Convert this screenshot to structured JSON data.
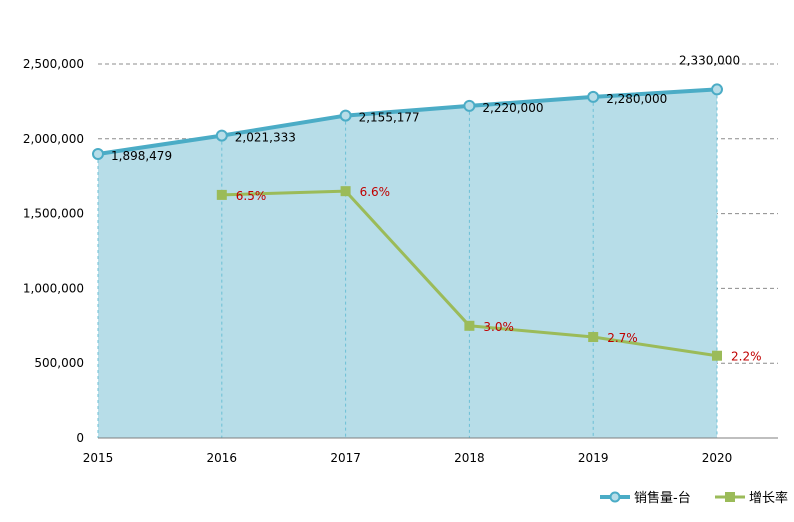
{
  "chart_data": {
    "type": "area",
    "categories": [
      "2015",
      "2016",
      "2017",
      "2018",
      "2019",
      "2020"
    ],
    "series": [
      {
        "name": "销售量-台",
        "axis": "left",
        "style": "area-line",
        "values": [
          1898479,
          2021333,
          2155177,
          2220000,
          2280000,
          2330000
        ],
        "labels": [
          "1,898,479",
          "2,021,333",
          "2,155,177",
          "2,220,000",
          "2,280,000",
          "2,330,000"
        ],
        "line_color": "#4bacc6",
        "fill_color": "#b7dde8"
      },
      {
        "name": "增长率",
        "axis": "right",
        "style": "line",
        "values": [
          null,
          6.5,
          6.6,
          3.0,
          2.7,
          2.2
        ],
        "labels": [
          null,
          "6.5%",
          "6.6%",
          "3.0%",
          "2.7%",
          "2.2%"
        ],
        "line_color": "#9bbb59",
        "label_color": "#c00000"
      }
    ],
    "y_left": {
      "min": 0,
      "max": 2500000,
      "ticks": [
        0,
        500000,
        1000000,
        1500000,
        2000000,
        2500000
      ],
      "tick_labels": [
        "0",
        "500,000",
        "1,000,000",
        "1,500,000",
        "2,000,000",
        "2,500,000"
      ]
    },
    "y_right": {
      "min": 0,
      "max": 10
    },
    "grid": true,
    "legend": "bottom-right"
  }
}
